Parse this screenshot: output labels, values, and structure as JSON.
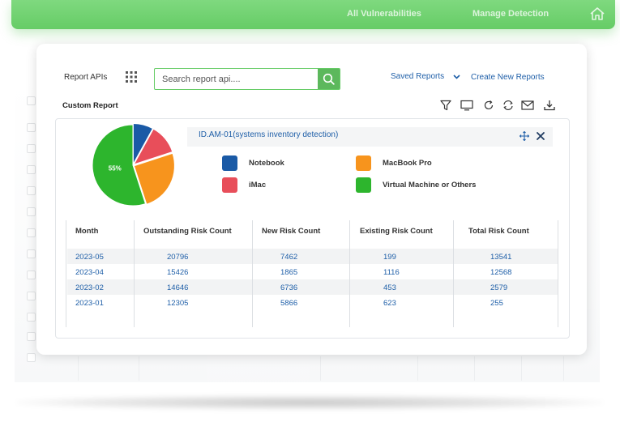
{
  "topnav": {
    "items": [
      "All Vulnerabilities",
      "Manage Detection"
    ]
  },
  "toolbar": {
    "report_apis_label": "Report APIs",
    "search_placeholder": "Search report api....",
    "saved_reports_label": "Saved Reports",
    "create_report_label": "Create New Reports"
  },
  "report": {
    "section_title": "Custom Report",
    "tools": [
      "filter-icon",
      "monitor-icon",
      "refresh-icon",
      "sync-icon",
      "email-icon",
      "download-icon"
    ]
  },
  "chart_data": {
    "type": "pie",
    "title": "ID.AM-01(systems inventory detection)",
    "categories": [
      "Virtual Machine or Others",
      "MacBook Pro",
      "iMac",
      "Notebook"
    ],
    "values": [
      55,
      25,
      12,
      8
    ],
    "slice_labels": [
      "55%",
      "",
      "",
      ""
    ],
    "colors": [
      "#2db52d",
      "#f7941d",
      "#e84e5a",
      "#1a5aa6"
    ],
    "legend": [
      {
        "label": "Notebook",
        "color": "#1a5aa6"
      },
      {
        "label": "MacBook Pro",
        "color": "#f7941d"
      },
      {
        "label": "iMac",
        "color": "#e84e5a"
      },
      {
        "label": "Virtual Machine or Others",
        "color": "#2db52d"
      }
    ]
  },
  "table": {
    "headers": [
      "Month",
      "Outstanding Risk Count",
      "New Risk Count",
      "Existing Risk Count",
      "Total Risk Count"
    ],
    "rows": [
      [
        "2023-05",
        "20796",
        "7462",
        "199",
        "13541"
      ],
      [
        "2023-04",
        "15426",
        "1865",
        "1116",
        "12568"
      ],
      [
        "2023-02",
        "14646",
        "6736",
        "453",
        "2579"
      ],
      [
        "2023-01",
        "12305",
        "5866",
        "623",
        "255"
      ]
    ]
  },
  "colors": {
    "accent": "#66cc66",
    "link": "#1f5fa8"
  }
}
